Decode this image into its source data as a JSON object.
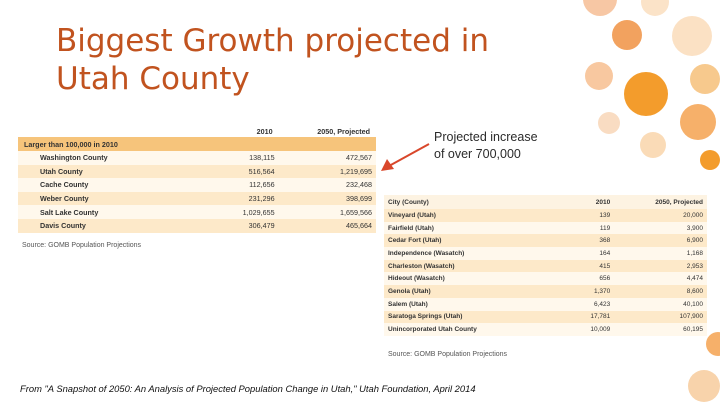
{
  "title": {
    "line1": "Biggest Growth projected in",
    "line2": "Utah County"
  },
  "callout": {
    "line1": "Projected increase",
    "line2": "of over 700,000"
  },
  "table1": {
    "headers": {
      "col1": "2010",
      "col2": "2050, Projected"
    },
    "section": "Larger than 100,000 in 2010",
    "rows": [
      {
        "name": "Washington County",
        "v2010": "138,115",
        "v2050": "472,567"
      },
      {
        "name": "Utah County",
        "v2010": "516,564",
        "v2050": "1,219,695"
      },
      {
        "name": "Cache County",
        "v2010": "112,656",
        "v2050": "232,468"
      },
      {
        "name": "Weber County",
        "v2010": "231,296",
        "v2050": "398,699"
      },
      {
        "name": "Salt Lake County",
        "v2010": "1,029,655",
        "v2050": "1,659,566"
      },
      {
        "name": "Davis County",
        "v2010": "306,479",
        "v2050": "465,664"
      }
    ],
    "source": "Source: GOMB Population Projections"
  },
  "table2": {
    "headers": {
      "name": "City (County)",
      "col1": "2010",
      "col2": "2050, Projected"
    },
    "rows": [
      {
        "name": "Vineyard (Utah)",
        "v2010": "139",
        "v2050": "20,000"
      },
      {
        "name": "Fairfield (Utah)",
        "v2010": "119",
        "v2050": "3,900"
      },
      {
        "name": "Cedar Fort (Utah)",
        "v2010": "368",
        "v2050": "6,900"
      },
      {
        "name": "Independence (Wasatch)",
        "v2010": "164",
        "v2050": "1,168"
      },
      {
        "name": "Charleston (Wasatch)",
        "v2010": "415",
        "v2050": "2,953"
      },
      {
        "name": "Hideout (Wasatch)",
        "v2010": "656",
        "v2050": "4,474"
      },
      {
        "name": "Genola (Utah)",
        "v2010": "1,370",
        "v2050": "8,600"
      },
      {
        "name": "Salem (Utah)",
        "v2010": "6,423",
        "v2050": "40,100"
      },
      {
        "name": "Saratoga Springs (Utah)",
        "v2010": "17,781",
        "v2050": "107,900"
      },
      {
        "name": "Unincorporated Utah County",
        "v2010": "10,009",
        "v2050": "60,195"
      }
    ],
    "source": "Source: GOMB Population Projections"
  },
  "footer": "From \"A Snapshot of 2050: An Analysis of Projected Population Change in Utah,\" Utah Foundation, April 2014",
  "colors": {
    "title": "#c1531f",
    "accent_orange": "#f6c47b",
    "arrow": "#d9472b"
  }
}
